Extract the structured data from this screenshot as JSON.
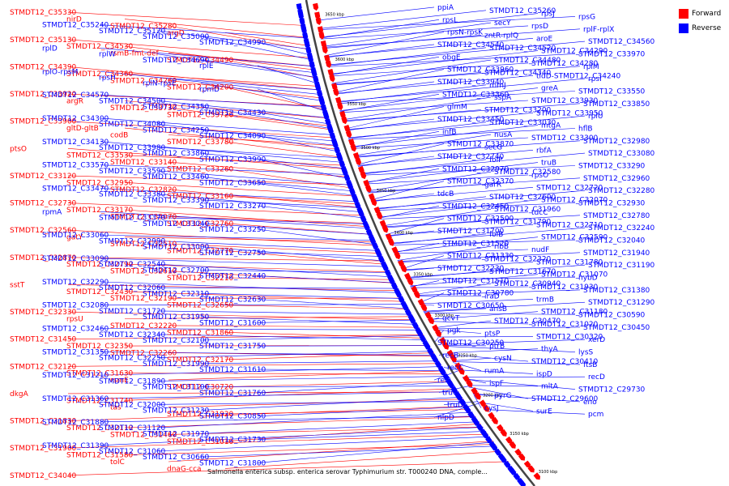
{
  "legend": [
    {
      "label": "Forward",
      "color": "#ff0000"
    },
    {
      "label": "Reverse",
      "color": "#0000ff"
    }
  ],
  "colors": {
    "forward": "#ff0000",
    "reverse": "#0000ff",
    "backbone": "#444444"
  },
  "caption": "Salmonella enterica subsp. enterica serovar Typhimurium str. T000240 DNA, comple...",
  "ticks": [
    "3650 kbp",
    "3600 kbp",
    "3550 kbp",
    "3500 kbp",
    "3450 kbp",
    "3400 kbp",
    "3350 kbp",
    "3300 kbp",
    "3250 kbp",
    "3200 kbp",
    "3150 kbp",
    "3100 kbp"
  ],
  "forward_labels": [
    "STMDT12_C35330",
    "nirD",
    "STMDT12_C35280",
    "argD",
    "STMDT12_C35130",
    "STMDT12_C34530",
    "rsmB-fmt-def",
    "STMDT12_C34490",
    "STMDT12_C34390",
    "STMDT12_C34360",
    "STMDT12_C34260",
    "STMDT12_C34200",
    "STMDT12_C33920",
    "argR",
    "STMDT12_C33730",
    "STMDT12_C33720",
    "STMDT12_C33900",
    "gltD-gltB",
    "codB",
    "STMDT12_C33780",
    "ptsO",
    "STMDT12_C33530",
    "STMDT12_C33140",
    "STMDT12_C33260",
    "STMDT12_C33120",
    "STMDT12_C32950",
    "STMDT12_C32820",
    "STMDT12_C33160",
    "STMDT12_C32730",
    "STMDT12_C33170",
    "STMDT12_C33070",
    "STMDT12_C32760",
    "STMDT12_C32560",
    "gatY",
    "STMDT12_C32510",
    "STMDT12_C32770",
    "STMDT12_C32870",
    "STMDT12_C32790",
    "STMDT12_C32610",
    "STMDT12_C32210",
    "sstT",
    "STMDT12_C32430",
    "STMDT12_C32190",
    "STMDT12_C32650",
    "STMDT12_C32330",
    "rpsU",
    "STMDT12_C32220",
    "STMDT12_C31860",
    "STMDT12_C31450",
    "STMDT12_C32350",
    "STMDT12_C32260",
    "STMDT12_C32170",
    "STMDT12_C32120",
    "STMDT12_C31630",
    "rsmE",
    "STMDT12_C30720",
    "dkgA",
    "STMDT12_C31740",
    "tas",
    "STMDT12_C31920",
    "STMDT12_C31830",
    "STMDT12_C32110",
    "STMDT12_C31460",
    "STMDT12_C31010",
    "STMDT12_C31900",
    "STMDT12_C31580",
    "tolC",
    "dnaG-cca",
    "STMDT12_C34040"
  ],
  "reverse_left_labels": [
    "STMDT12_C35240",
    "STMDT12_C35120",
    "STMDT12_C35000",
    "STMDT12_C34990",
    "rplD",
    "rplW",
    "STMDT12_C34690",
    "rplE",
    "rplO-rpsM",
    "rpsH",
    "rplN-rpsE",
    "rpmD",
    "STMDT12_C34570",
    "STMDT12_C34500",
    "STMDT12_C34350",
    "STMDT12_C34430",
    "STMDT12_C34300",
    "STMDT12_C34080",
    "STMDT12_C34250",
    "STMDT12_C34090",
    "STMDT12_C34130",
    "STMDT12_C33980",
    "STMDT12_C33860",
    "STMDT12_C33990",
    "STMDT12_C33570",
    "STMDT12_C33590",
    "STMDT12_C33460",
    "STMDT12_C33650",
    "STMDT12_C33470",
    "STMDT12_C33380",
    "STMDT12_C33390",
    "STMDT12_C33270",
    "rpmA",
    "STMDT12_C33370",
    "STMDT12_C33040",
    "STMDT12_C33250",
    "STMDT12_C33060",
    "STMDT12_C32990",
    "STMDT12_C33000",
    "STMDT12_C32750",
    "STMDT12_C33090",
    "STMDT12_C32540",
    "STMDT12_C32700",
    "STMDT12_C32440",
    "STMDT12_C32290",
    "STMDT12_C32060",
    "STMDT12_C32310",
    "STMDT12_C32630",
    "STMDT12_C32080",
    "STMDT12_C31720",
    "STMDT12_C31950",
    "STMDT12_C31600",
    "STMDT12_C32460",
    "STMDT12_C32340",
    "STMDT12_C32100",
    "STMDT12_C31750",
    "STMDT12_C31350",
    "STMDT12_C32250",
    "STMDT12_C31990",
    "STMDT12_C31610",
    "STMDT12_C31210",
    "STMDT12_C31890",
    "STMDT12_C31100",
    "STMDT12_C31760",
    "STMDT12_C31360",
    "STMDT12_C32000",
    "STMDT12_C31230",
    "STMDT12_C30850",
    "STMDT12_C31880",
    "STMDT12_C31120",
    "STMDT12_C31970",
    "STMDT12_C31730",
    "STMDT12_C31390",
    "STMDT12_C31060",
    "STMDT12_C30660",
    "STMDT12_C31800"
  ],
  "reverse_right_labels": [
    "ppiA",
    "STMDT12_C35260",
    "rpsJ",
    "rpsG",
    "rpsL",
    "secY",
    "rpsD",
    "rplF-rplX",
    "rpsN-rpsK",
    "zntR-rplQ",
    "aroE",
    "STMDT12_C34560",
    "STMDT12_C34540",
    "STMDT12_C34520",
    "STMDT12_C34290",
    "STMDT12_C33970",
    "obgE",
    "STMDT12_C34480",
    "STMDT12_C34280",
    "rplM",
    "STMDT12_C33960",
    "STMDT12_C34340",
    "tldD-STMDT12_C34240",
    "rpsI",
    "STMDT12_C33940",
    "rnmJ",
    "greA",
    "STMDT12_C33550",
    "STMDT12_C33360",
    "sspA",
    "STMDT12_C33930",
    "STMDT12_C33850",
    "glmM",
    "STMDT12_C33200",
    "STMDT12_C33950",
    "rplU",
    "STMDT12_C33450",
    "STMDT12_C33030",
    "mtgA",
    "hflB",
    "infB",
    "nusA",
    "STMDT12_C33300",
    "STMDT12_C32980",
    "STMDT12_C33870",
    "secG",
    "rbfA",
    "STMDT12_C33080",
    "STMDT12_C32740",
    "folP",
    "truB",
    "STMDT12_C33290",
    "STMDT12_C32970",
    "STMDT12_C32580",
    "rpsO",
    "STMDT12_C32960",
    "STMDT12_C32370",
    "garR",
    "STMDT12_C32720",
    "STMDT12_C32280",
    "tdcB",
    "STMDT12_C32600",
    "STMDT12_C32070",
    "STMDT12_C32930",
    "STMDT12_C32450",
    "STMDT12_C31960",
    "tdcC",
    "STMDT12_C32780",
    "STMDT12_C32500",
    "STMDT12_C31790",
    "STMDT12_C32710",
    "STMDT12_C32240",
    "STMDT12_C31700",
    "folB",
    "STMDT12_C32590",
    "STMDT12_C32040",
    "STMDT12_C31520",
    "ribB",
    "nudF",
    "STMDT12_C31940",
    "STMDT12_C31330",
    "STMDT12_C32320",
    "STMDT12_C31780",
    "STMDT12_C31190",
    "STMDT12_C32230",
    "STMDT12_C31670",
    "STMDT12_C31070",
    "hybD",
    "STMDT12_C31510",
    "STMDT12_C30940",
    "STMDT12_C31930",
    "STMDT12_C31380",
    "STMDT12_C30780",
    "iraD",
    "trmB",
    "STMDT12_C31290",
    "STMDT12_C30650",
    "ansB",
    "STMDT12_C31180",
    "STMDT12_C30590",
    "gcvT",
    "STMDT12_C30470",
    "STMDT12_C31020",
    "STMDT12_C30450",
    "pgk",
    "ptsP",
    "STMDT12_C30320",
    "xerD",
    "STMDT12_C30250",
    "ptrB",
    "thyA",
    "lysS",
    "recB",
    "cysN",
    "STMDT12_C30410",
    "ftsB",
    "recC",
    "rumA",
    "ispD",
    "recD",
    "relA",
    "ispF",
    "mltA",
    "STMDT12_C29730",
    "truC",
    "pyrG",
    "STMDT12_C29600",
    "eno",
    "truD",
    "cysJ",
    "surE",
    "pcm",
    "nlpD"
  ]
}
